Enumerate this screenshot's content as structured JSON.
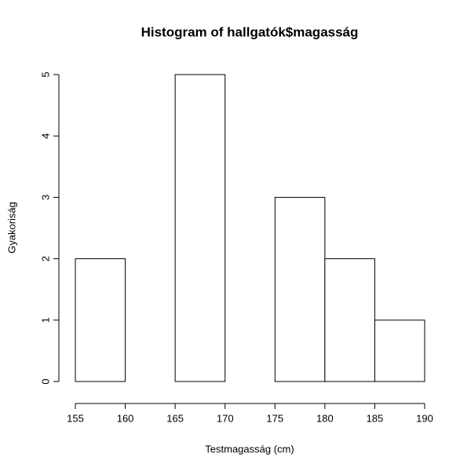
{
  "chart_data": {
    "type": "histogram",
    "title": "Histogram of hallgatók$magasság",
    "x_label": "Testmagasság (cm)",
    "y_label": "Gyakoriság",
    "bins": [
      155,
      160,
      165,
      170,
      175,
      180,
      185,
      190
    ],
    "values": [
      2,
      0,
      5,
      0,
      3,
      2,
      1
    ],
    "color": "#ffffff",
    "edge_color": "#000000",
    "xlim": [
      155,
      190
    ],
    "xticks": [
      155,
      160,
      165,
      170,
      175,
      180,
      185,
      190
    ],
    "ylim": [
      0,
      5
    ],
    "yticks": [
      0,
      1,
      2,
      3,
      4,
      5
    ],
    "grid": false
  }
}
